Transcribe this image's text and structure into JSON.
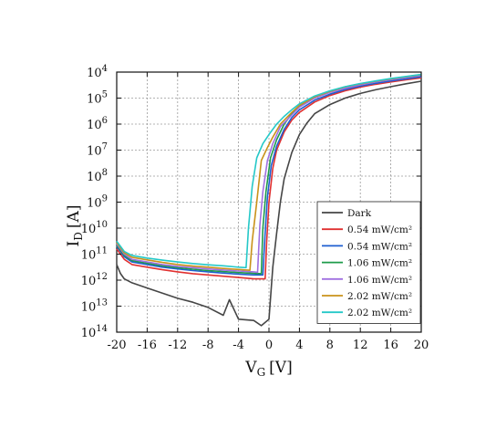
{
  "chart_data": {
    "type": "line",
    "title": "",
    "xlabel": {
      "main": "V",
      "sub": "G",
      "unit": "[V]"
    },
    "ylabel": {
      "main": "I",
      "sub": "D",
      "unit": "[A]"
    },
    "xlim": [
      -20,
      20
    ],
    "x_ticks": [
      -20,
      -16,
      -12,
      -8,
      -4,
      0,
      4,
      8,
      12,
      16,
      20
    ],
    "x_tick_labels": [
      "-20",
      "-16",
      "-12",
      "-8",
      "-4",
      "0",
      "4",
      "8",
      "12",
      "16",
      "20"
    ],
    "y_scale": "log",
    "y_tick_exponents": [
      4,
      5,
      6,
      7,
      8,
      9,
      10,
      11,
      12,
      13,
      14
    ],
    "y_tick_base": "10",
    "grid": true,
    "legend_position": "bottom-right",
    "series": [
      {
        "name": "Dark",
        "color": "#454545",
        "points": [
          [
            -20,
            11.4
          ],
          [
            -19.5,
            11.75
          ],
          [
            -19,
            11.95
          ],
          [
            -18,
            12.1
          ],
          [
            -16,
            12.3
          ],
          [
            -14,
            12.5
          ],
          [
            -12,
            12.7
          ],
          [
            -10,
            12.85
          ],
          [
            -8,
            13.05
          ],
          [
            -6,
            13.35
          ],
          [
            -5.2,
            12.75
          ],
          [
            -4,
            13.5
          ],
          [
            -2,
            13.55
          ],
          [
            -1,
            13.75
          ],
          [
            0,
            13.5
          ],
          [
            0.5,
            11.5
          ],
          [
            1,
            10.2
          ],
          [
            1.5,
            9
          ],
          [
            2,
            8.1
          ],
          [
            3,
            7.1
          ],
          [
            4,
            6.4
          ],
          [
            5,
            5.95
          ],
          [
            6,
            5.6
          ],
          [
            8,
            5.25
          ],
          [
            10,
            5.0
          ],
          [
            12,
            4.82
          ],
          [
            14,
            4.68
          ],
          [
            16,
            4.56
          ],
          [
            18,
            4.45
          ],
          [
            20,
            4.35
          ]
        ]
      },
      {
        "name": "0.54 mW/cm²",
        "color": "#e03030",
        "points": [
          [
            -20,
            10.8
          ],
          [
            -19,
            11.2
          ],
          [
            -18,
            11.4
          ],
          [
            -16,
            11.5
          ],
          [
            -14,
            11.6
          ],
          [
            -12,
            11.68
          ],
          [
            -10,
            11.75
          ],
          [
            -8,
            11.8
          ],
          [
            -6,
            11.85
          ],
          [
            -4,
            11.9
          ],
          [
            -2,
            11.95
          ],
          [
            -0.5,
            11.95
          ],
          [
            -0.3,
            10.5
          ],
          [
            0,
            9
          ],
          [
            0.5,
            7.7
          ],
          [
            1,
            7.0
          ],
          [
            2,
            6.3
          ],
          [
            3,
            5.85
          ],
          [
            4,
            5.55
          ],
          [
            6,
            5.15
          ],
          [
            8,
            4.9
          ],
          [
            10,
            4.72
          ],
          [
            12,
            4.58
          ],
          [
            14,
            4.47
          ],
          [
            16,
            4.38
          ],
          [
            18,
            4.3
          ],
          [
            20,
            4.22
          ]
        ]
      },
      {
        "name": "0.54 mW/cm²",
        "color": "#1f5fd0",
        "points": [
          [
            -20,
            10.7
          ],
          [
            -19,
            11.1
          ],
          [
            -18,
            11.3
          ],
          [
            -16,
            11.4
          ],
          [
            -14,
            11.5
          ],
          [
            -12,
            11.57
          ],
          [
            -10,
            11.63
          ],
          [
            -8,
            11.68
          ],
          [
            -6,
            11.73
          ],
          [
            -4,
            11.77
          ],
          [
            -2,
            11.8
          ],
          [
            -0.8,
            11.8
          ],
          [
            -0.5,
            10.2
          ],
          [
            -0.2,
            8.8
          ],
          [
            0.3,
            7.6
          ],
          [
            1,
            6.85
          ],
          [
            2,
            6.2
          ],
          [
            3,
            5.75
          ],
          [
            4,
            5.45
          ],
          [
            6,
            5.08
          ],
          [
            8,
            4.85
          ],
          [
            10,
            4.67
          ],
          [
            12,
            4.54
          ],
          [
            14,
            4.43
          ],
          [
            16,
            4.34
          ],
          [
            18,
            4.26
          ],
          [
            20,
            4.18
          ]
        ]
      },
      {
        "name": "1.06 mW/cm²",
        "color": "#1e9b4a",
        "points": [
          [
            -20,
            10.65
          ],
          [
            -19,
            11.05
          ],
          [
            -18,
            11.25
          ],
          [
            -16,
            11.35
          ],
          [
            -14,
            11.45
          ],
          [
            -12,
            11.52
          ],
          [
            -10,
            11.58
          ],
          [
            -8,
            11.63
          ],
          [
            -6,
            11.67
          ],
          [
            -4,
            11.71
          ],
          [
            -2,
            11.74
          ],
          [
            -1,
            11.75
          ],
          [
            -0.8,
            10
          ],
          [
            -0.4,
            8.6
          ],
          [
            0.2,
            7.3
          ],
          [
            1,
            6.6
          ],
          [
            2,
            6.0
          ],
          [
            3,
            5.6
          ],
          [
            4,
            5.32
          ],
          [
            6,
            4.98
          ],
          [
            8,
            4.77
          ],
          [
            10,
            4.6
          ],
          [
            12,
            4.48
          ],
          [
            14,
            4.37
          ],
          [
            16,
            4.28
          ],
          [
            18,
            4.2
          ],
          [
            20,
            4.12
          ]
        ]
      },
      {
        "name": "1.06 mW/cm²",
        "color": "#a070e0",
        "points": [
          [
            -20,
            10.6
          ],
          [
            -19,
            11.0
          ],
          [
            -18,
            11.2
          ],
          [
            -16,
            11.3
          ],
          [
            -14,
            11.4
          ],
          [
            -12,
            11.47
          ],
          [
            -10,
            11.52
          ],
          [
            -8,
            11.57
          ],
          [
            -6,
            11.61
          ],
          [
            -4,
            11.65
          ],
          [
            -2,
            11.68
          ],
          [
            -1.5,
            11.7
          ],
          [
            -1.2,
            9.9
          ],
          [
            -0.8,
            8.6
          ],
          [
            -0.2,
            7.4
          ],
          [
            0.5,
            6.75
          ],
          [
            1.5,
            6.1
          ],
          [
            3,
            5.65
          ],
          [
            4,
            5.35
          ],
          [
            6,
            5.0
          ],
          [
            8,
            4.78
          ],
          [
            10,
            4.62
          ],
          [
            12,
            4.49
          ],
          [
            14,
            4.38
          ],
          [
            16,
            4.29
          ],
          [
            18,
            4.21
          ],
          [
            20,
            4.13
          ]
        ]
      },
      {
        "name": "2.02 mW/cm²",
        "color": "#c9921a",
        "points": [
          [
            -20,
            10.55
          ],
          [
            -19,
            10.95
          ],
          [
            -18,
            11.12
          ],
          [
            -16,
            11.22
          ],
          [
            -14,
            11.32
          ],
          [
            -12,
            11.4
          ],
          [
            -10,
            11.46
          ],
          [
            -8,
            11.5
          ],
          [
            -6,
            11.55
          ],
          [
            -4,
            11.59
          ],
          [
            -2.5,
            11.62
          ],
          [
            -2.2,
            10.5
          ],
          [
            -1.6,
            9
          ],
          [
            -1,
            7.4
          ],
          [
            -0.2,
            6.9
          ],
          [
            0.5,
            6.5
          ],
          [
            1.5,
            6.0
          ],
          [
            3,
            5.55
          ],
          [
            4,
            5.28
          ],
          [
            6,
            4.95
          ],
          [
            8,
            4.74
          ],
          [
            10,
            4.57
          ],
          [
            12,
            4.45
          ],
          [
            14,
            4.35
          ],
          [
            16,
            4.26
          ],
          [
            18,
            4.18
          ],
          [
            20,
            4.1
          ]
        ]
      },
      {
        "name": "2.02 mW/cm²",
        "color": "#25c8c8",
        "points": [
          [
            -20,
            10.5
          ],
          [
            -19,
            10.9
          ],
          [
            -18,
            11.05
          ],
          [
            -16,
            11.15
          ],
          [
            -14,
            11.23
          ],
          [
            -12,
            11.3
          ],
          [
            -10,
            11.36
          ],
          [
            -8,
            11.41
          ],
          [
            -6,
            11.45
          ],
          [
            -4,
            11.5
          ],
          [
            -3,
            11.52
          ],
          [
            -2.7,
            10
          ],
          [
            -2.2,
            8.4
          ],
          [
            -1.6,
            7.3
          ],
          [
            -0.8,
            6.75
          ],
          [
            0,
            6.4
          ],
          [
            1,
            6.0
          ],
          [
            2,
            5.7
          ],
          [
            3,
            5.45
          ],
          [
            4,
            5.22
          ],
          [
            6,
            4.92
          ],
          [
            8,
            4.72
          ],
          [
            10,
            4.56
          ],
          [
            12,
            4.44
          ],
          [
            14,
            4.34
          ],
          [
            16,
            4.25
          ],
          [
            18,
            4.17
          ],
          [
            20,
            4.09
          ]
        ]
      }
    ]
  }
}
